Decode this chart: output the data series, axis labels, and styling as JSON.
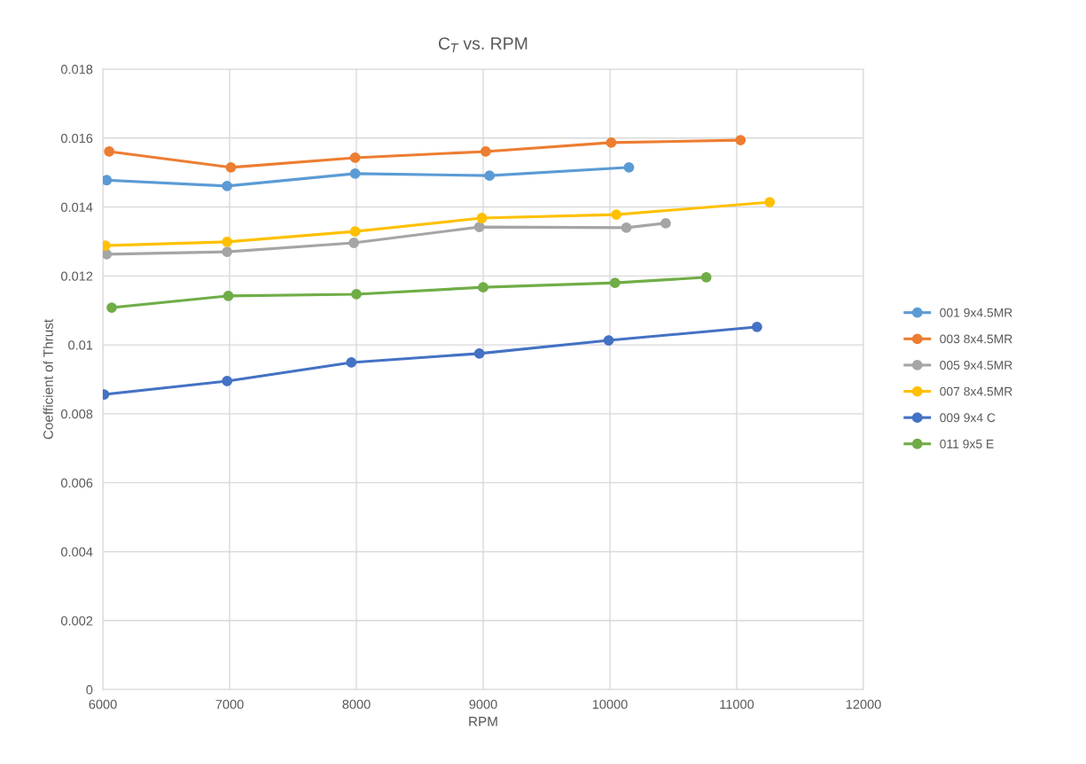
{
  "chart_data": {
    "type": "line",
    "title": "C$_{T}$ vs. RPM",
    "xlabel": "RPM",
    "ylabel": "Coefficient of Thrust",
    "xlim": [
      6000,
      12000
    ],
    "xticks": [
      6000,
      7000,
      8000,
      9000,
      10000,
      11000,
      12000
    ],
    "ylim": [
      0,
      0.018
    ],
    "yticks": [
      {
        "value": 0,
        "label": "0"
      },
      0.002,
      0.004,
      0.006,
      0.008,
      {
        "value": 0.01,
        "label": "0.01"
      },
      0.012,
      0.014,
      0.016,
      0.018
    ],
    "grid": true,
    "legend": "right",
    "marker": "circle",
    "line_style": "solid",
    "series": [
      {
        "name": "001 9x4.5MR",
        "color": "#5b9bd5",
        "x": [
          6030,
          6980,
          7990,
          9050,
          10150
        ],
        "values": [
          0.01478,
          0.01461,
          0.01497,
          0.01491,
          0.01515
        ]
      },
      {
        "name": "003 8x4.5MR",
        "color": "#ed7d31",
        "x": [
          6050,
          7010,
          7990,
          9020,
          10010,
          11030
        ],
        "values": [
          0.01561,
          0.01515,
          0.01543,
          0.01561,
          0.01587,
          0.01594
        ]
      },
      {
        "name": "005 9x4.5MR",
        "color": "#a5a5a5",
        "x": [
          6030,
          6980,
          7980,
          8970,
          10130,
          10440
        ],
        "values": [
          0.01263,
          0.0127,
          0.01296,
          0.01342,
          0.0134,
          0.01353
        ]
      },
      {
        "name": "007 8x4.5MR",
        "color": "#ffc000",
        "x": [
          6020,
          6980,
          7990,
          8990,
          10050,
          11260
        ],
        "values": [
          0.01288,
          0.01299,
          0.01329,
          0.01368,
          0.01378,
          0.01414
        ]
      },
      {
        "name": "009 9x4 C",
        "color": "#4472c4",
        "x": [
          6010,
          6980,
          7960,
          8970,
          9990,
          11160
        ],
        "values": [
          0.00856,
          0.00895,
          0.00949,
          0.00975,
          0.01013,
          0.01052
        ]
      },
      {
        "name": "011 9x5 E",
        "color": "#70ad47",
        "x": [
          6070,
          6990,
          8000,
          9000,
          10040,
          10760
        ],
        "values": [
          0.01108,
          0.01142,
          0.01147,
          0.01167,
          0.0118,
          0.01196
        ]
      }
    ]
  }
}
